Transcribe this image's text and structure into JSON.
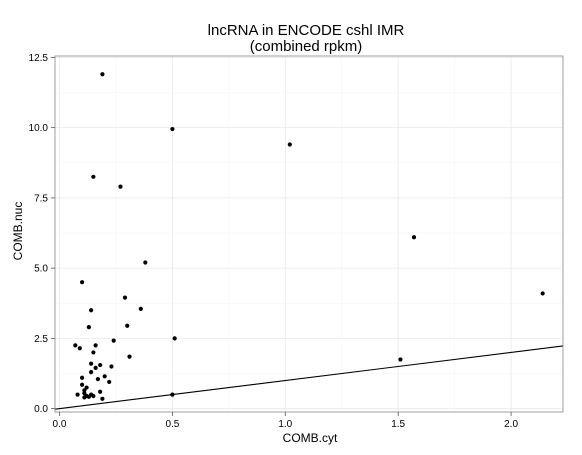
{
  "chart_data": {
    "type": "scatter",
    "title": "lncRNA in ENCODE cshl IMR",
    "subtitle": "(combined rpkm)",
    "xlabel": "COMB.cyt",
    "ylabel": "COMB.nuc",
    "xlim": [
      -0.02,
      2.23
    ],
    "ylim": [
      -0.12,
      12.55
    ],
    "xticks": [
      0.0,
      0.5,
      1.0,
      1.5,
      2.0
    ],
    "xtick_labels": [
      "0.0",
      "0.5",
      "1.0",
      "1.5",
      "2.0"
    ],
    "yticks": [
      0.0,
      2.5,
      5.0,
      7.5,
      10.0,
      12.5
    ],
    "ytick_labels": [
      "0.0",
      "2.5",
      "5.0",
      "7.5",
      "10.0",
      "12.5"
    ],
    "grid": true,
    "reference_line": {
      "slope": 1,
      "intercept": 0
    },
    "points": [
      [
        0.19,
        11.9
      ],
      [
        0.5,
        9.95
      ],
      [
        1.02,
        9.4
      ],
      [
        0.15,
        8.25
      ],
      [
        0.27,
        7.9
      ],
      [
        1.57,
        6.1
      ],
      [
        0.38,
        5.2
      ],
      [
        2.14,
        4.1
      ],
      [
        0.1,
        4.5
      ],
      [
        0.29,
        3.95
      ],
      [
        0.36,
        3.55
      ],
      [
        0.14,
        3.5
      ],
      [
        0.3,
        2.95
      ],
      [
        0.13,
        2.9
      ],
      [
        0.51,
        2.5
      ],
      [
        0.24,
        2.42
      ],
      [
        0.07,
        2.25
      ],
      [
        0.16,
        2.25
      ],
      [
        0.09,
        2.15
      ],
      [
        0.15,
        2.0
      ],
      [
        0.31,
        1.85
      ],
      [
        1.51,
        1.75
      ],
      [
        0.14,
        1.6
      ],
      [
        0.18,
        1.55
      ],
      [
        0.23,
        1.5
      ],
      [
        0.16,
        1.45
      ],
      [
        0.14,
        1.3
      ],
      [
        0.2,
        1.15
      ],
      [
        0.1,
        1.1
      ],
      [
        0.17,
        1.05
      ],
      [
        0.22,
        0.95
      ],
      [
        0.1,
        0.85
      ],
      [
        0.12,
        0.75
      ],
      [
        0.11,
        0.65
      ],
      [
        0.18,
        0.6
      ],
      [
        0.11,
        0.55
      ],
      [
        0.14,
        0.5
      ],
      [
        0.08,
        0.5
      ],
      [
        0.5,
        0.5
      ],
      [
        0.12,
        0.45
      ],
      [
        0.15,
        0.45
      ],
      [
        0.13,
        0.42
      ],
      [
        0.11,
        0.4
      ],
      [
        0.19,
        0.35
      ]
    ]
  }
}
